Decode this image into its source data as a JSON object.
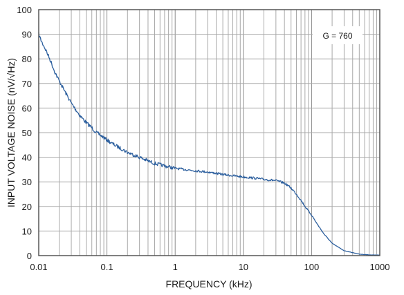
{
  "chart_data": {
    "type": "line",
    "xscale": "log",
    "xlim": [
      0.01,
      1000
    ],
    "ylim": [
      0,
      100
    ],
    "x_ticks": [
      0.01,
      0.1,
      1,
      10,
      100,
      1000
    ],
    "x_tick_labels": [
      "0.01",
      "0.1",
      "1",
      "10",
      "100",
      "1000"
    ],
    "y_ticks": [
      0,
      10,
      20,
      30,
      40,
      50,
      60,
      70,
      80,
      90,
      100
    ],
    "y_tick_labels": [
      "0",
      "10",
      "20",
      "30",
      "40",
      "50",
      "60",
      "70",
      "80",
      "90",
      "100"
    ],
    "xlabel": "FREQUENCY (kHz)",
    "ylabel": "INPUT VOLTAGE NOISE (nV/√Hz)",
    "annotation": "G = 760",
    "grid": true,
    "line_color": "#2c5f9e",
    "series": [
      {
        "x": [
          0.01,
          0.011,
          0.012,
          0.013,
          0.015,
          0.017,
          0.02,
          0.025,
          0.03,
          0.04,
          0.05,
          0.06,
          0.07,
          0.08,
          0.1,
          0.12,
          0.15,
          0.2,
          0.3,
          0.4,
          0.5,
          0.7,
          1,
          2,
          3,
          5,
          7,
          10,
          15,
          20,
          30,
          40,
          50,
          60,
          70,
          80,
          100,
          120,
          150,
          200,
          300,
          500,
          700,
          1000
        ],
        "y": [
          90,
          87,
          85,
          83,
          79,
          75,
          71,
          66,
          62,
          57,
          54,
          52,
          50,
          49,
          47,
          45.5,
          44,
          42,
          40,
          38.5,
          37.5,
          36.5,
          35.5,
          34.5,
          34,
          33,
          32.5,
          32,
          31.5,
          31,
          30.5,
          29.5,
          27.5,
          25,
          22.5,
          20,
          16.5,
          13,
          9,
          5,
          2,
          0.6,
          0.3,
          0.2
        ]
      }
    ]
  }
}
